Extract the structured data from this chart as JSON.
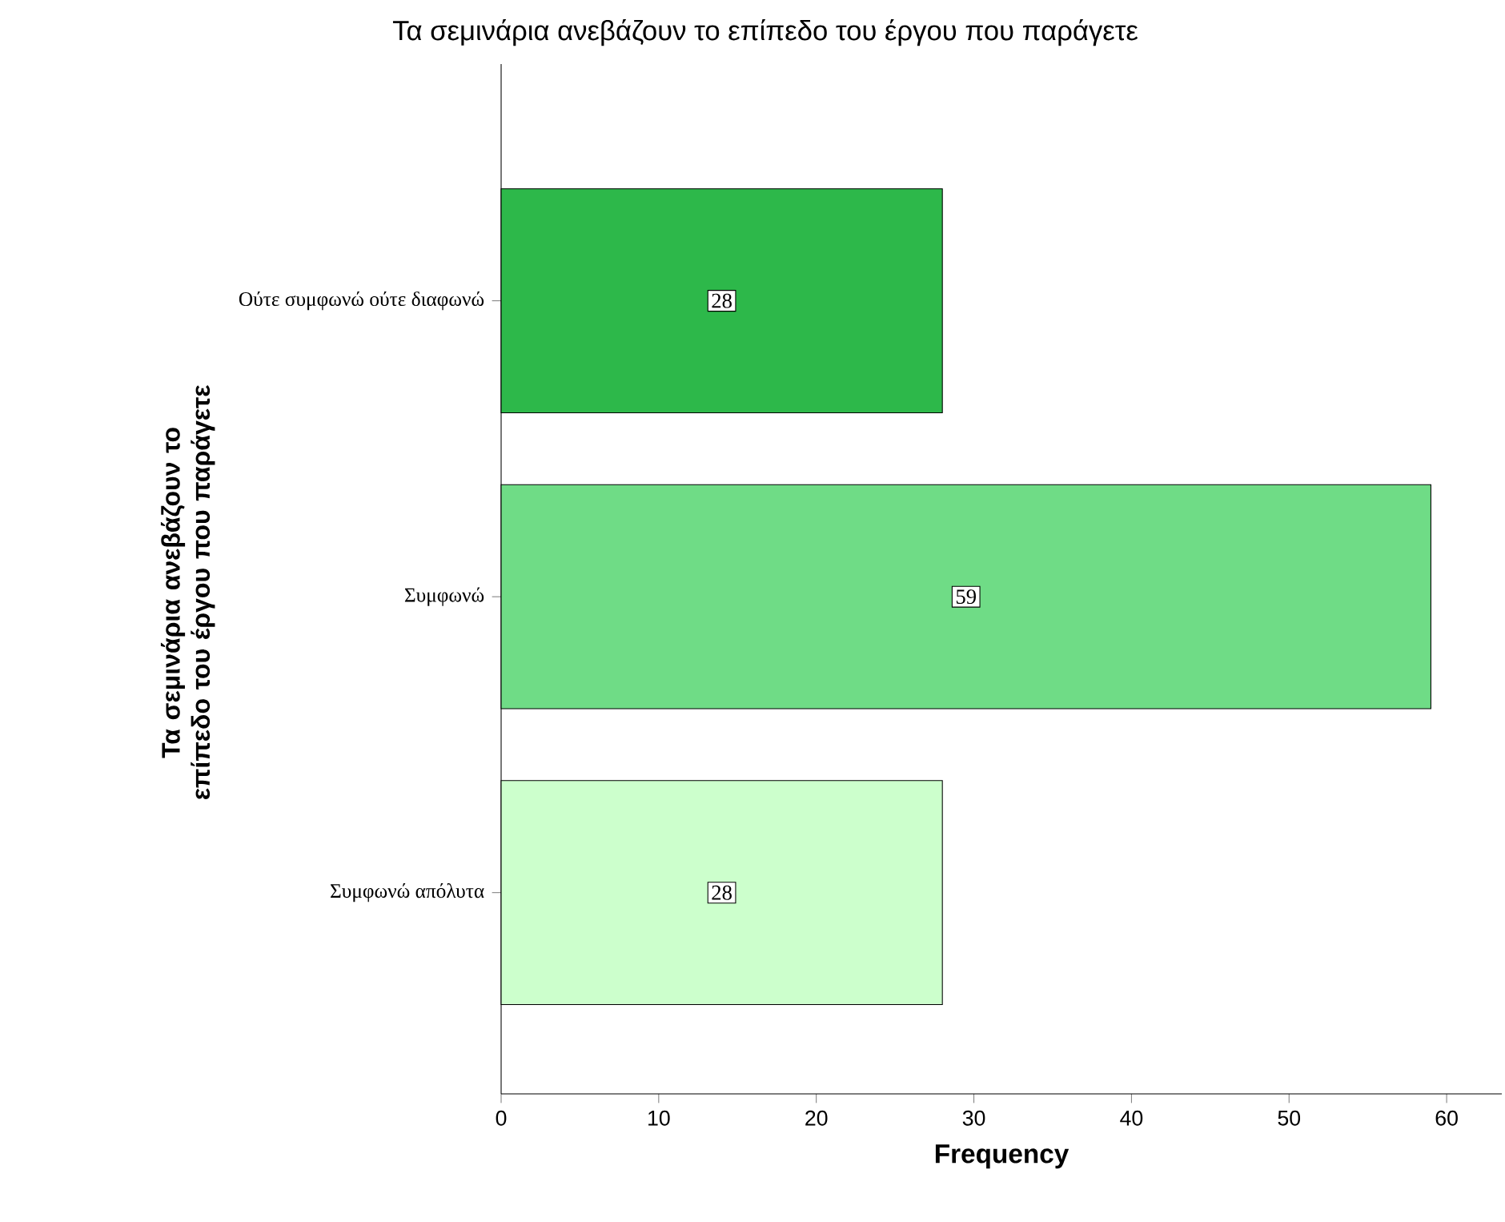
{
  "chart_data": {
    "type": "bar",
    "orientation": "horizontal",
    "title": "Τα σεμινάρια ανεβάζουν το επίπεδο του έργου που παράγετε",
    "xlabel": "Frequency",
    "ylabel": "Τα σεμινάρια ανεβάζουν το επίπεδο του έργου που παράγετε",
    "categories": [
      "Ούτε συμφωνώ ούτε διαφωνώ",
      "Συμφωνώ",
      "Συμφωνώ απόλυτα"
    ],
    "values": [
      28,
      59,
      28
    ],
    "colors": [
      "#2db84a",
      "#6fdc86",
      "#ccffcc"
    ],
    "xlim": [
      0,
      63.5
    ],
    "xticks": [
      0,
      10,
      20,
      30,
      40,
      50,
      60
    ],
    "data_labels": true,
    "grid": false
  }
}
